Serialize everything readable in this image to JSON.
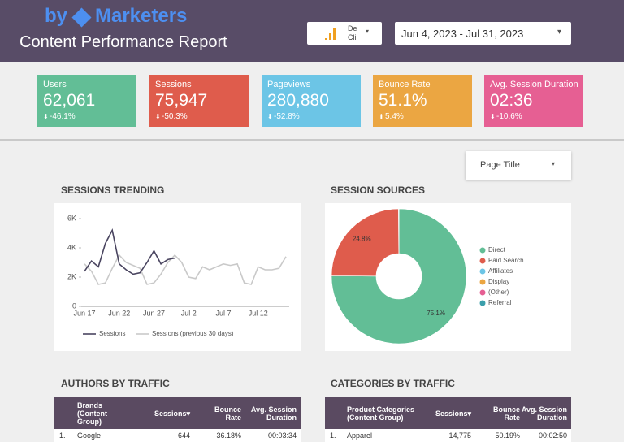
{
  "header": {
    "logo_by": "by",
    "logo_name": "Marketers",
    "title": "Content Performance Report",
    "device_filter": [
      "De",
      "Cli"
    ],
    "date_range": "Jun 4, 2023 - Jul 31, 2023"
  },
  "kpis": [
    {
      "label": "Users",
      "value": "62,061",
      "change": "-46.1%",
      "color": "#62be96"
    },
    {
      "label": "Sessions",
      "value": "75,947",
      "change": "-50.3%",
      "color": "#df5c4c"
    },
    {
      "label": "Pageviews",
      "value": "280,880",
      "change": "-52.8%",
      "color": "#6cc5e6"
    },
    {
      "label": "Bounce Rate",
      "value": "51.1%",
      "change": "5.4%",
      "color": "#eba642"
    },
    {
      "label": "Avg. Session Duration",
      "value": "02:36",
      "change": "-10.6%",
      "color": "#e65f93"
    }
  ],
  "page_filter": "Page Title",
  "sessions_trending": {
    "type": "line",
    "title": "SESSIONS TRENDING",
    "categories": [
      "Jun 17",
      null,
      null,
      null,
      null,
      "Jun 22",
      null,
      null,
      null,
      null,
      "Jun 27",
      null,
      null,
      null,
      null,
      "Jul 2",
      null,
      null,
      null,
      null,
      "Jul 7",
      null,
      null,
      null,
      null,
      "Jul 12",
      null,
      null,
      null,
      null
    ],
    "ylim": [
      0,
      6000
    ],
    "yticks": [
      0,
      {
        "value": 2000,
        "label": "2K"
      },
      {
        "value": 4000,
        "label": "4K"
      },
      {
        "value": 6000,
        "label": "6K"
      }
    ],
    "series": [
      {
        "name": "Sessions",
        "color": "#4a4560",
        "values": [
          2400,
          3100,
          2700,
          4300,
          5200,
          2900,
          2500,
          2200,
          2300,
          3000,
          3800,
          2900,
          3200,
          3300,
          null,
          null,
          null,
          null,
          null,
          null,
          null,
          null,
          null,
          null,
          null,
          null,
          null,
          null,
          null,
          null
        ]
      },
      {
        "name": "Sessions (previous 30 days)",
        "color": "#c9c9c9",
        "values": [
          2900,
          2400,
          1500,
          1600,
          2600,
          3500,
          3000,
          2800,
          2600,
          1500,
          1600,
          2200,
          3000,
          3500,
          3000,
          2000,
          1900,
          2700,
          2500,
          2700,
          2900,
          2800,
          2900,
          1600,
          1500,
          2700,
          2500,
          2500,
          2600,
          3400
        ]
      }
    ]
  },
  "session_sources": {
    "type": "pie",
    "title": "SESSION SOURCES",
    "categories": [
      "Direct",
      "Paid Search",
      "Affiliates",
      "Display",
      "(Other)",
      "Referral"
    ],
    "values": [
      75.1,
      24.8,
      0.05,
      0.02,
      0.02,
      0.01
    ],
    "value_labels": [
      "75.1%",
      "24.8%",
      null,
      null,
      null,
      null
    ],
    "colors": [
      "#62be96",
      "#df5c4c",
      "#6cc5e6",
      "#eba642",
      "#e65f93",
      "#3b9fab"
    ]
  },
  "authors_table": {
    "title": "AUTHORS BY TRAFFIC",
    "columns": [
      "Brands (Content Group)",
      "Sessions",
      "Bounce Rate",
      "Avg. Session Duration"
    ],
    "rows": [
      [
        "1.",
        "Google",
        "644",
        "36.18%",
        "00:03:34"
      ]
    ]
  },
  "categories_table": {
    "title": "CATEGORIES BY TRAFFIC",
    "columns": [
      "Product Categories (Content Group)",
      "Sessions",
      "Bounce Rate",
      "Avg. Session Duration"
    ],
    "rows": [
      [
        "1.",
        "Apparel",
        "14,775",
        "50.19%",
        "00:02:50"
      ]
    ]
  }
}
